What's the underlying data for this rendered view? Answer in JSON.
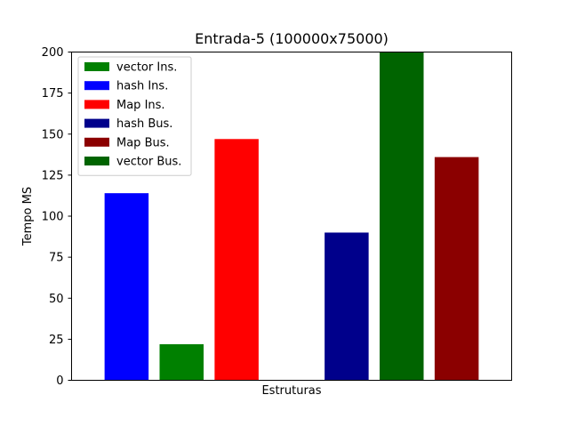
{
  "chart_data": {
    "type": "bar",
    "title": "Entrada-5 (100000x75000)",
    "xlabel": "Estruturas",
    "ylabel": "Tempo MS",
    "ylim": [
      0,
      200
    ],
    "yticks": [
      0,
      25,
      50,
      75,
      100,
      125,
      150,
      175,
      200
    ],
    "grid": false,
    "legend_position": "top-left",
    "bars": [
      {
        "value": 114,
        "color": "#0000ff"
      },
      {
        "value": 22,
        "color": "#008000"
      },
      {
        "value": 147,
        "color": "#ff0000"
      },
      {
        "value": 0,
        "color": "#000000"
      },
      {
        "value": 90,
        "color": "#00008b"
      },
      {
        "value": 200,
        "color": "#006400"
      },
      {
        "value": 136,
        "color": "#8b0000"
      }
    ],
    "legend": [
      {
        "label": "vector Ins.",
        "color": "#008000"
      },
      {
        "label": "hash Ins.",
        "color": "#0000ff"
      },
      {
        "label": "Map Ins.",
        "color": "#ff0000"
      },
      {
        "label": "hash Bus.",
        "color": "#00008b"
      },
      {
        "label": "Map Bus.",
        "color": "#8b0000"
      },
      {
        "label": "vector Bus.",
        "color": "#006400"
      }
    ]
  }
}
